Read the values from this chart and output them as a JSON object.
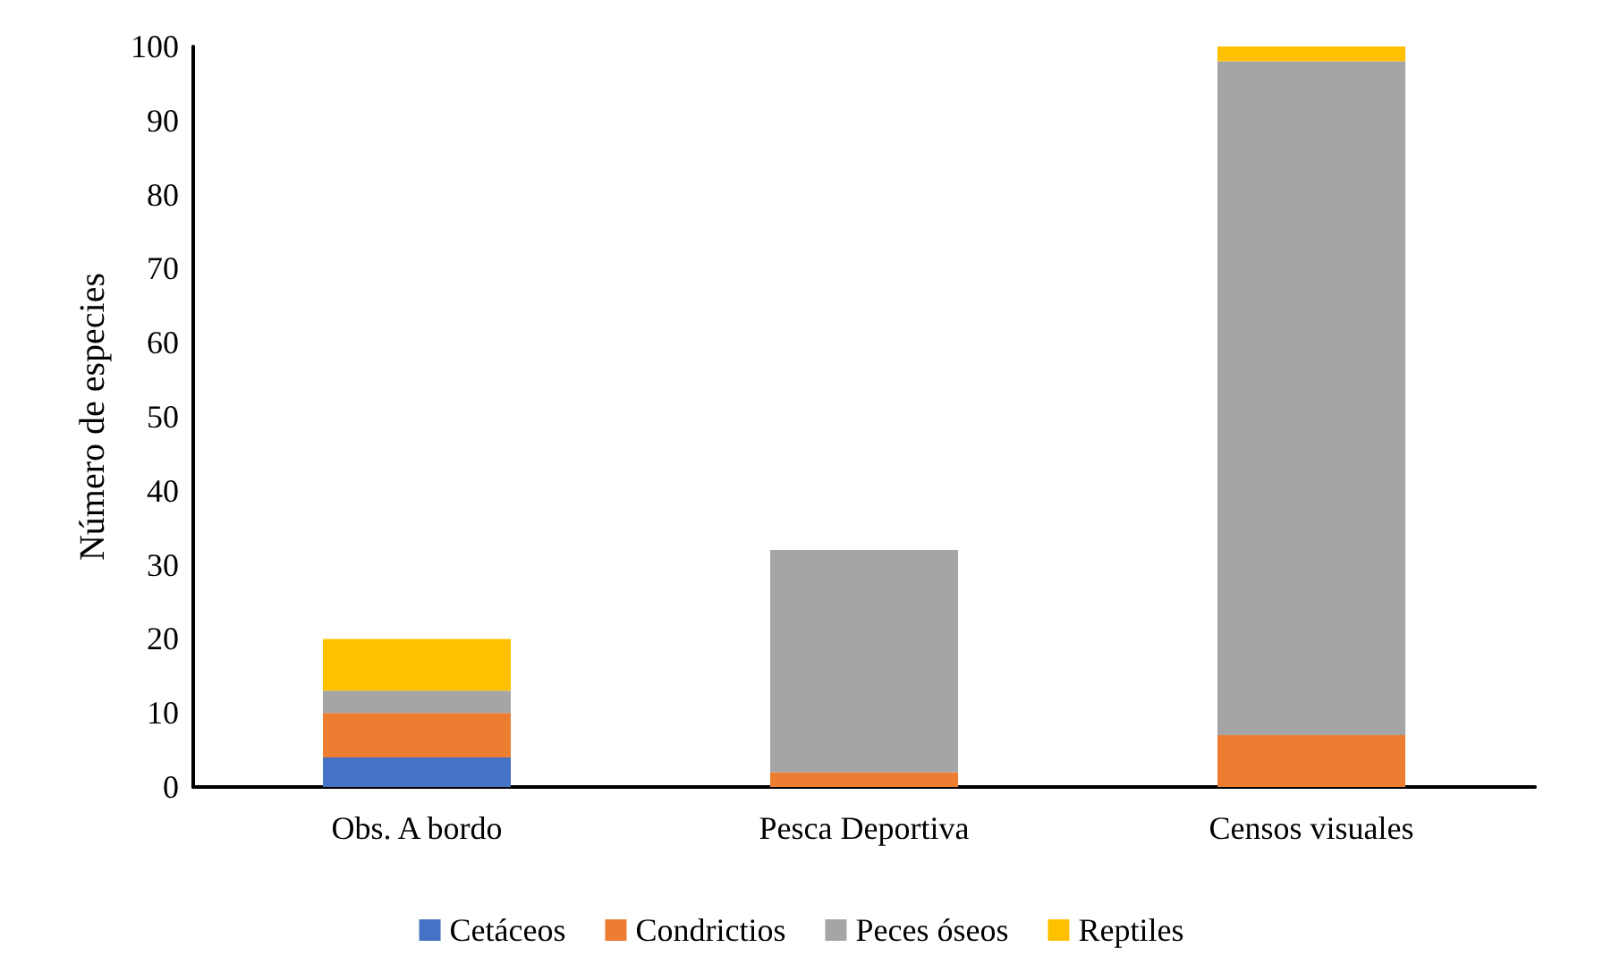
{
  "chart_data": {
    "type": "bar",
    "stacked": true,
    "ylabel": "Número de especies",
    "categories": [
      "Obs. A bordo",
      "Pesca Deportiva",
      "Censos visuales"
    ],
    "series": [
      {
        "name": "Cetáceos",
        "color": "#4472c4",
        "values": [
          4,
          0,
          0
        ]
      },
      {
        "name": "Condrictios",
        "color": "#ed7d31",
        "values": [
          6,
          2,
          7
        ]
      },
      {
        "name": "Peces óseos",
        "color": "#a5a5a5",
        "values": [
          3,
          30,
          91
        ]
      },
      {
        "name": "Reptiles",
        "color": "#ffc000",
        "values": [
          7,
          0,
          2
        ]
      }
    ],
    "ylim": [
      0,
      100
    ],
    "yticks": [
      0,
      10,
      20,
      30,
      40,
      50,
      60,
      70,
      80,
      90,
      100
    ],
    "grid": false,
    "legend": "bottom"
  }
}
